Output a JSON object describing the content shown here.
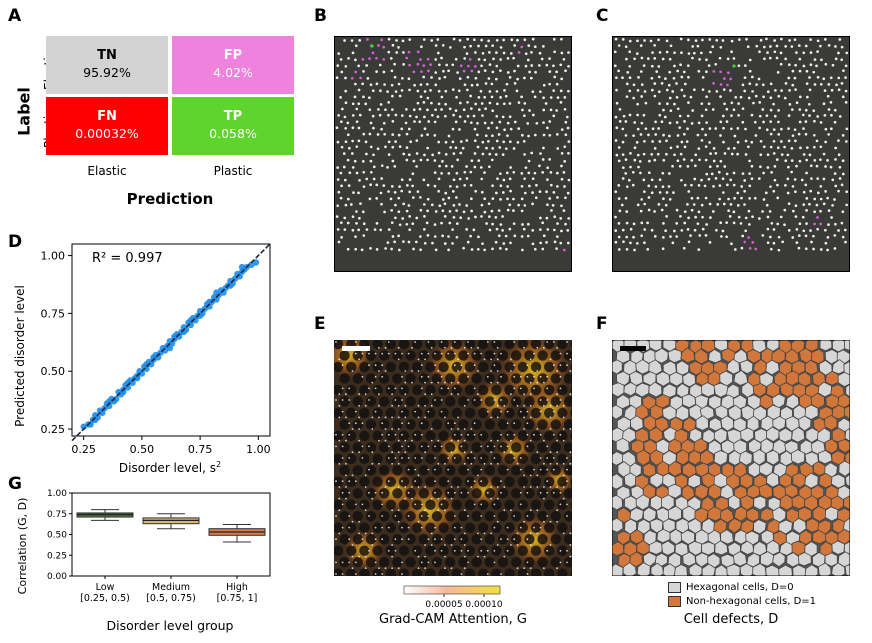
{
  "panels": {
    "A": "A",
    "B": "B",
    "C": "C",
    "D": "D",
    "E": "E",
    "F": "F",
    "G": "G"
  },
  "confusion": {
    "ylabel": "Label",
    "xlabel": "Prediction",
    "row_labels": [
      "Elastic",
      "Plastic"
    ],
    "col_labels": [
      "Elastic",
      "Plastic"
    ],
    "cells": [
      {
        "id": "TN",
        "value": "95.92%",
        "color": "#d3d3d3",
        "text_color": "#000000"
      },
      {
        "id": "FP",
        "value": "4.02%",
        "color": "#ee82dc",
        "text_color": "#ffffff"
      },
      {
        "id": "FN",
        "value": "0.00032%",
        "color": "#ff0000",
        "text_color": "#ffffff"
      },
      {
        "id": "TP",
        "value": "0.058%",
        "color": "#5fd42c",
        "text_color": "#ffffff"
      }
    ]
  },
  "chart_data": [
    {
      "panel": "D",
      "type": "scatter",
      "title": "",
      "annotation": "R² = 0.997",
      "xlabel": "Disorder level, s²",
      "ylabel": "Predicted disorder level",
      "xlim": [
        0.2,
        1.05
      ],
      "ylim": [
        0.22,
        1.05
      ],
      "xticks": [
        "0.25",
        "0.50",
        "0.75",
        "1.00"
      ],
      "yticks": [
        "0.25",
        "0.50",
        "0.75",
        "1.00"
      ],
      "xtick_values": [
        0.25,
        0.5,
        0.75,
        1.0
      ],
      "ytick_values": [
        0.25,
        0.5,
        0.75,
        1.0
      ],
      "fit_line": [
        [
          0.2,
          0.2
        ],
        [
          1.05,
          1.05
        ]
      ],
      "point_color": "#1f8de8",
      "points": [
        [
          0.25,
          0.26
        ],
        [
          0.27,
          0.27
        ],
        [
          0.28,
          0.27
        ],
        [
          0.29,
          0.29
        ],
        [
          0.3,
          0.31
        ],
        [
          0.31,
          0.3
        ],
        [
          0.32,
          0.33
        ],
        [
          0.33,
          0.32
        ],
        [
          0.34,
          0.34
        ],
        [
          0.35,
          0.36
        ],
        [
          0.36,
          0.35
        ],
        [
          0.37,
          0.38
        ],
        [
          0.38,
          0.37
        ],
        [
          0.39,
          0.38
        ],
        [
          0.4,
          0.41
        ],
        [
          0.41,
          0.4
        ],
        [
          0.42,
          0.42
        ],
        [
          0.43,
          0.44
        ],
        [
          0.44,
          0.43
        ],
        [
          0.45,
          0.46
        ],
        [
          0.46,
          0.45
        ],
        [
          0.47,
          0.47
        ],
        [
          0.48,
          0.48
        ],
        [
          0.49,
          0.5
        ],
        [
          0.5,
          0.49
        ],
        [
          0.51,
          0.52
        ],
        [
          0.52,
          0.51
        ],
        [
          0.53,
          0.54
        ],
        [
          0.54,
          0.53
        ],
        [
          0.55,
          0.55
        ],
        [
          0.56,
          0.57
        ],
        [
          0.57,
          0.56
        ],
        [
          0.58,
          0.58
        ],
        [
          0.59,
          0.6
        ],
        [
          0.6,
          0.59
        ],
        [
          0.61,
          0.61
        ],
        [
          0.62,
          0.63
        ],
        [
          0.63,
          0.62
        ],
        [
          0.64,
          0.64
        ],
        [
          0.65,
          0.66
        ],
        [
          0.66,
          0.65
        ],
        [
          0.67,
          0.67
        ],
        [
          0.68,
          0.69
        ],
        [
          0.69,
          0.68
        ],
        [
          0.7,
          0.71
        ],
        [
          0.71,
          0.7
        ],
        [
          0.72,
          0.73
        ],
        [
          0.73,
          0.72
        ],
        [
          0.74,
          0.74
        ],
        [
          0.75,
          0.76
        ],
        [
          0.76,
          0.75
        ],
        [
          0.77,
          0.77
        ],
        [
          0.78,
          0.79
        ],
        [
          0.79,
          0.78
        ],
        [
          0.8,
          0.8
        ],
        [
          0.81,
          0.82
        ],
        [
          0.82,
          0.81
        ],
        [
          0.83,
          0.83
        ],
        [
          0.84,
          0.85
        ],
        [
          0.85,
          0.84
        ],
        [
          0.86,
          0.86
        ],
        [
          0.87,
          0.87
        ],
        [
          0.88,
          0.89
        ],
        [
          0.89,
          0.88
        ],
        [
          0.9,
          0.9
        ],
        [
          0.91,
          0.92
        ],
        [
          0.92,
          0.91
        ],
        [
          0.93,
          0.93
        ],
        [
          0.94,
          0.94
        ],
        [
          0.95,
          0.95
        ],
        [
          0.97,
          0.96
        ],
        [
          0.99,
          0.97
        ],
        [
          0.3,
          0.29
        ],
        [
          0.36,
          0.37
        ],
        [
          0.42,
          0.41
        ],
        [
          0.48,
          0.47
        ],
        [
          0.55,
          0.56
        ],
        [
          0.62,
          0.6
        ],
        [
          0.68,
          0.67
        ],
        [
          0.75,
          0.74
        ],
        [
          0.82,
          0.84
        ],
        [
          0.88,
          0.87
        ],
        [
          0.93,
          0.95
        ],
        [
          0.44,
          0.45
        ],
        [
          0.52,
          0.53
        ],
        [
          0.64,
          0.65
        ],
        [
          0.71,
          0.72
        ],
        [
          0.79,
          0.8
        ]
      ]
    },
    {
      "panel": "G",
      "type": "box",
      "xlabel": "Disorder level group",
      "ylabel": "Correlation (G, D)",
      "ylim": [
        0.0,
        1.0
      ],
      "yticks": [
        "0.00",
        "0.25",
        "0.50",
        "0.75",
        "1.00"
      ],
      "ytick_values": [
        0.0,
        0.25,
        0.5,
        0.75,
        1.0
      ],
      "categories": [
        "Low\n[0.25, 0.5)",
        "Medium\n[0.5, 0.75)",
        "High\n[0.75, 1]"
      ],
      "category_lines": [
        [
          "Low",
          "[0.25, 0.5)"
        ],
        [
          "Medium",
          "[0.5, 0.75)"
        ],
        [
          "High",
          "[0.75, 1]"
        ]
      ],
      "boxes": [
        {
          "name": "Low",
          "whisker_low": 0.67,
          "q1": 0.71,
          "median": 0.74,
          "q3": 0.76,
          "whisker_high": 0.8,
          "color": "#4e7a3e"
        },
        {
          "name": "Medium",
          "whisker_low": 0.57,
          "q1": 0.63,
          "median": 0.67,
          "q3": 0.7,
          "whisker_high": 0.75,
          "color": "#d9b86c"
        },
        {
          "name": "High",
          "whisker_low": 0.41,
          "q1": 0.49,
          "median": 0.53,
          "q3": 0.57,
          "whisker_high": 0.62,
          "color": "#d97a4a"
        }
      ]
    }
  ],
  "gradcam": {
    "colorbar_label": "Grad-CAM Attention, G",
    "ticks": [
      "0.00005",
      "0.00010"
    ],
    "tick_values": [
      5e-05,
      0.0001
    ],
    "range": [
      0,
      0.00012
    ]
  },
  "defects": {
    "title": "Cell defects, D",
    "legend": [
      {
        "label": "Hexagonal cells, D=0",
        "color": "#d6d6d6"
      },
      {
        "label": "Non-hexagonal cells, D=1",
        "color": "#d2773b"
      }
    ]
  }
}
